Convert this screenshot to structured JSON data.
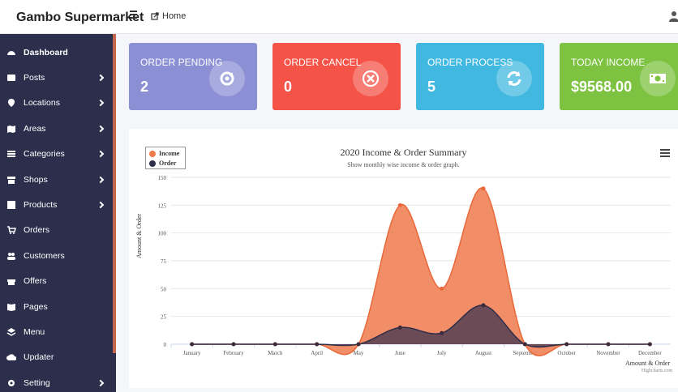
{
  "app": {
    "brand": "Gambo Supermarket",
    "home_label": "Home"
  },
  "sidebar": {
    "items": [
      {
        "label": "Dashboard",
        "icon": "tachometer-icon",
        "chevron": false,
        "active": true
      },
      {
        "label": "Posts",
        "icon": "card-icon",
        "chevron": true
      },
      {
        "label": "Locations",
        "icon": "map-marker-icon",
        "chevron": true
      },
      {
        "label": "Areas",
        "icon": "map-icon",
        "chevron": true
      },
      {
        "label": "Categories",
        "icon": "list-icon",
        "chevron": true
      },
      {
        "label": "Shops",
        "icon": "store-icon",
        "chevron": true
      },
      {
        "label": "Products",
        "icon": "box-icon",
        "chevron": true
      },
      {
        "label": "Orders",
        "icon": "cart-icon",
        "chevron": false
      },
      {
        "label": "Customers",
        "icon": "users-icon",
        "chevron": false
      },
      {
        "label": "Offers",
        "icon": "gift-icon",
        "chevron": false
      },
      {
        "label": "Pages",
        "icon": "book-icon",
        "chevron": false
      },
      {
        "label": "Menu",
        "icon": "layers-icon",
        "chevron": false
      },
      {
        "label": "Updater",
        "icon": "cloud-upload-icon",
        "chevron": false
      },
      {
        "label": "Setting",
        "icon": "gear-icon",
        "chevron": true
      }
    ]
  },
  "cards": [
    {
      "title": "ORDER PENDING",
      "value": "2",
      "color": "#8b8fd4",
      "icon": "pending-icon"
    },
    {
      "title": "ORDER CANCEL",
      "value": "0",
      "color": "#f55347",
      "icon": "cancel-circle-icon"
    },
    {
      "title": "ORDER PROCESS",
      "value": "5",
      "color": "#41b8e0",
      "icon": "refresh-icon"
    },
    {
      "title": "TODAY INCOME",
      "value": "$9568.00",
      "color": "#7dc241",
      "icon": "money-icon"
    }
  ],
  "chart": {
    "title": "2020 Income & Order Summary",
    "subtitle": "Show monthly wise income & order graph.",
    "ylabel": "Amount & Order",
    "xlabel": "Amount & Order",
    "credits": "Highcharts.com"
  },
  "chart_data": {
    "type": "area",
    "title": "2020 Income & Order Summary",
    "subtitle": "Show monthly wise income & order graph.",
    "xlabel": "Amount & Order",
    "ylabel": "Amount & Order",
    "categories": [
      "January",
      "February",
      "March",
      "April",
      "May",
      "June",
      "July",
      "August",
      "September",
      "October",
      "November",
      "December"
    ],
    "ylim": [
      0,
      150
    ],
    "yticks": [
      0,
      25,
      50,
      75,
      100,
      125,
      150
    ],
    "grid": true,
    "legend": "top-left",
    "series": [
      {
        "name": "Income",
        "color": "#f07a4c",
        "values": [
          0,
          0,
          0,
          0,
          0,
          125,
          50,
          140,
          0,
          0,
          0,
          0
        ]
      },
      {
        "name": "Order",
        "color": "#2f2e4a",
        "values": [
          0,
          0,
          0,
          0,
          0,
          15,
          10,
          35,
          0,
          0,
          0,
          0
        ]
      }
    ]
  }
}
